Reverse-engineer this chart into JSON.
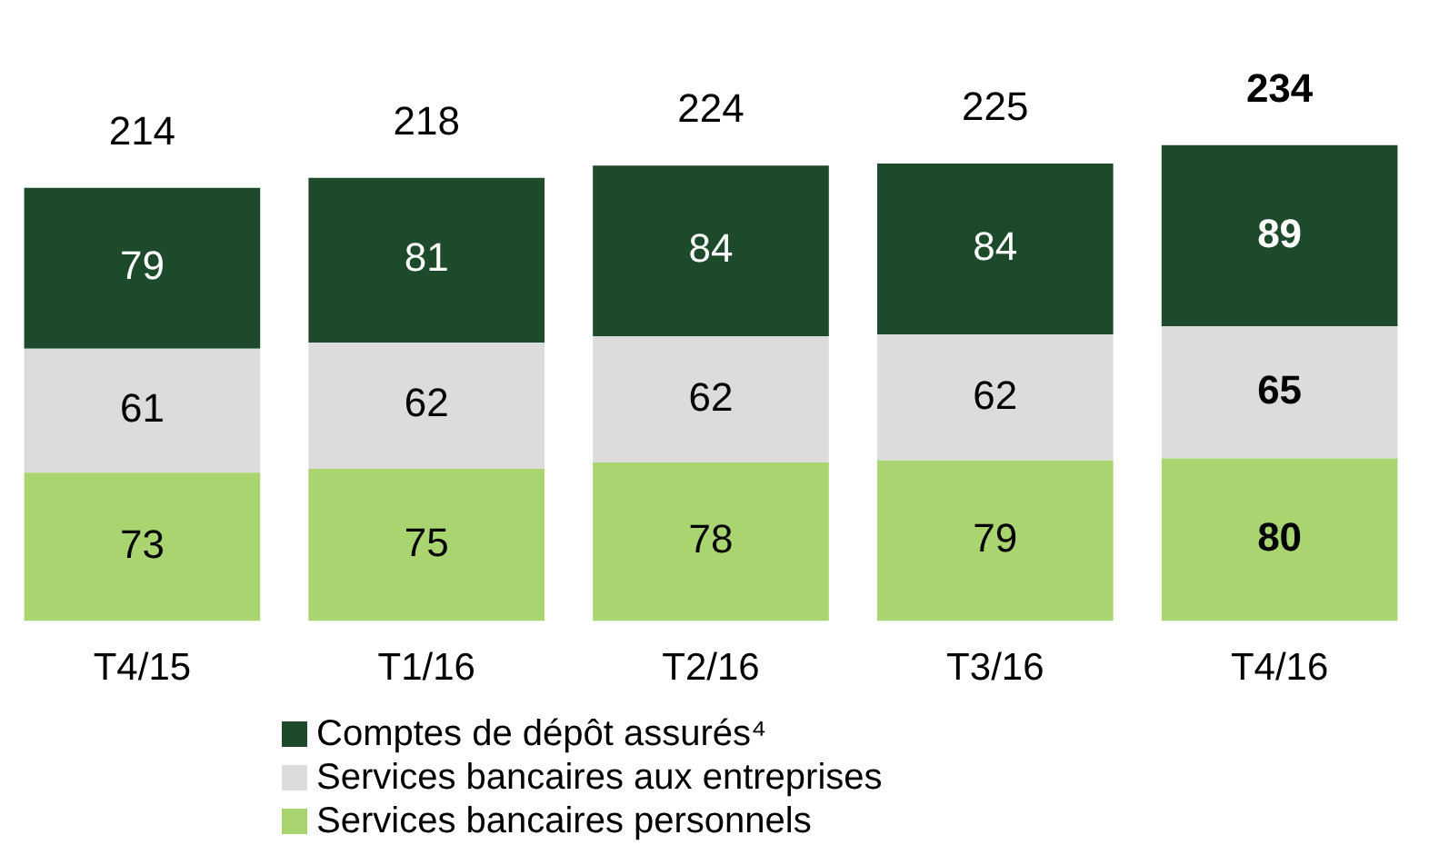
{
  "chart_data": {
    "type": "bar",
    "stacked": true,
    "categories": [
      "T4/15",
      "T1/16",
      "T2/16",
      "T3/16",
      "T4/16"
    ],
    "series": [
      {
        "name": "Services bancaires personnels",
        "color": "#a9d46f",
        "values": [
          73,
          75,
          78,
          79,
          80
        ]
      },
      {
        "name": "Services bancaires aux entreprises",
        "color": "#dcdcdc",
        "values": [
          61,
          62,
          62,
          62,
          65
        ]
      },
      {
        "name": "Comptes de dépôt assurés⁴",
        "color": "#1c4a2a",
        "values": [
          79,
          81,
          84,
          84,
          89
        ]
      }
    ],
    "totals": [
      "214",
      "218",
      "224",
      "225",
      "234"
    ],
    "data_labels": true,
    "legend": "bottom",
    "grid": false
  }
}
